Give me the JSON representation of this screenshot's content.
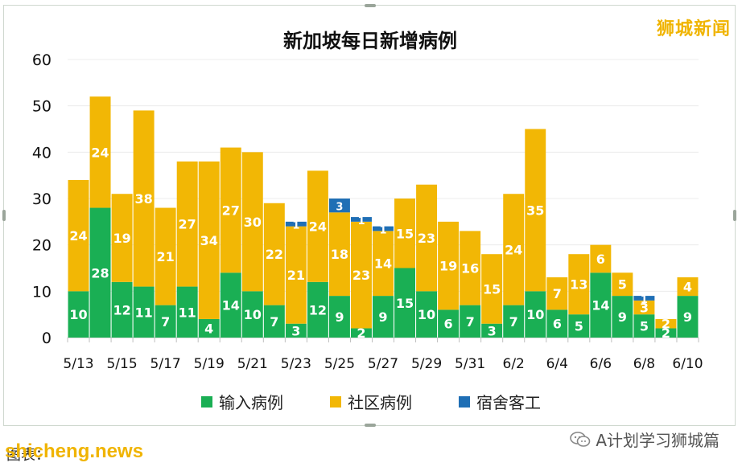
{
  "watermark_top": "狮城新闻",
  "footer_left": "图表：",
  "footer_site": "shicheng.news",
  "footer_right": "A计划学习狮城篇",
  "colors": {
    "imported": "#1aaf54",
    "community": "#f2b705",
    "dormitory": "#1f6fb5"
  },
  "chart_data": {
    "type": "bar",
    "stacked": true,
    "title": "新加坡每日新增病例",
    "xlabel": "",
    "ylabel": "",
    "ylim": [
      0,
      60
    ],
    "yticks": [
      0,
      10,
      20,
      30,
      40,
      50,
      60
    ],
    "grid": true,
    "legend_position": "bottom",
    "categories": [
      "5/13",
      "5/14",
      "5/15",
      "5/16",
      "5/17",
      "5/18",
      "5/19",
      "5/20",
      "5/21",
      "5/22",
      "5/23",
      "5/24",
      "5/25",
      "5/26",
      "5/27",
      "5/28",
      "5/29",
      "5/30",
      "5/31",
      "6/1",
      "6/2",
      "6/3",
      "6/4",
      "6/5",
      "6/6",
      "6/7",
      "6/8",
      "6/9",
      "6/10"
    ],
    "tick_labels": [
      "5/13",
      "",
      "5/15",
      "",
      "5/17",
      "",
      "5/19",
      "",
      "5/21",
      "",
      "5/23",
      "",
      "5/25",
      "",
      "5/27",
      "",
      "5/29",
      "",
      "5/31",
      "",
      "6/2",
      "",
      "6/4",
      "",
      "6/6",
      "",
      "6/8",
      "",
      "6/10"
    ],
    "series": [
      {
        "name": "输入病例",
        "values": [
          10,
          28,
          12,
          11,
          7,
          11,
          4,
          14,
          10,
          7,
          3,
          12,
          9,
          2,
          9,
          15,
          10,
          6,
          7,
          3,
          7,
          10,
          6,
          5,
          14,
          9,
          5,
          2,
          9
        ]
      },
      {
        "name": "社区病例",
        "values": [
          24,
          24,
          19,
          38,
          21,
          27,
          34,
          27,
          30,
          22,
          21,
          24,
          18,
          23,
          14,
          15,
          23,
          19,
          16,
          15,
          24,
          35,
          7,
          13,
          6,
          5,
          3,
          2,
          4
        ]
      },
      {
        "name": "宿舍客工",
        "values": [
          0,
          0,
          0,
          0,
          0,
          0,
          0,
          0,
          0,
          0,
          1,
          0,
          3,
          1,
          1,
          0,
          0,
          0,
          0,
          0,
          0,
          0,
          0,
          0,
          0,
          0,
          1,
          0,
          0
        ]
      }
    ],
    "data_labels": [
      [
        "10",
        "24",
        ""
      ],
      [
        "28",
        "24",
        ""
      ],
      [
        "12",
        "19",
        ""
      ],
      [
        "11",
        "38",
        ""
      ],
      [
        "7",
        "21",
        ""
      ],
      [
        "11",
        "27",
        ""
      ],
      [
        "4",
        "34",
        ""
      ],
      [
        "14",
        "27",
        ""
      ],
      [
        "10",
        "30",
        ""
      ],
      [
        "7",
        "22",
        ""
      ],
      [
        "3",
        "21",
        "1"
      ],
      [
        "12",
        "24",
        ""
      ],
      [
        "9",
        "18",
        "3"
      ],
      [
        "2",
        "23",
        "1"
      ],
      [
        "9",
        "14",
        "1"
      ],
      [
        "15",
        "15",
        ""
      ],
      [
        "10",
        "23",
        ""
      ],
      [
        "6",
        "19",
        ""
      ],
      [
        "7",
        "16",
        ""
      ],
      [
        "3",
        "15",
        ""
      ],
      [
        "7",
        "24",
        ""
      ],
      [
        "10",
        "35",
        ""
      ],
      [
        "6",
        "7",
        ""
      ],
      [
        "5",
        "13",
        ""
      ],
      [
        "14",
        "6",
        ""
      ],
      [
        "9",
        "5",
        ""
      ],
      [
        "5",
        "3",
        "1"
      ],
      [
        "2",
        "2",
        ""
      ],
      [
        "9",
        "4",
        ""
      ]
    ]
  }
}
